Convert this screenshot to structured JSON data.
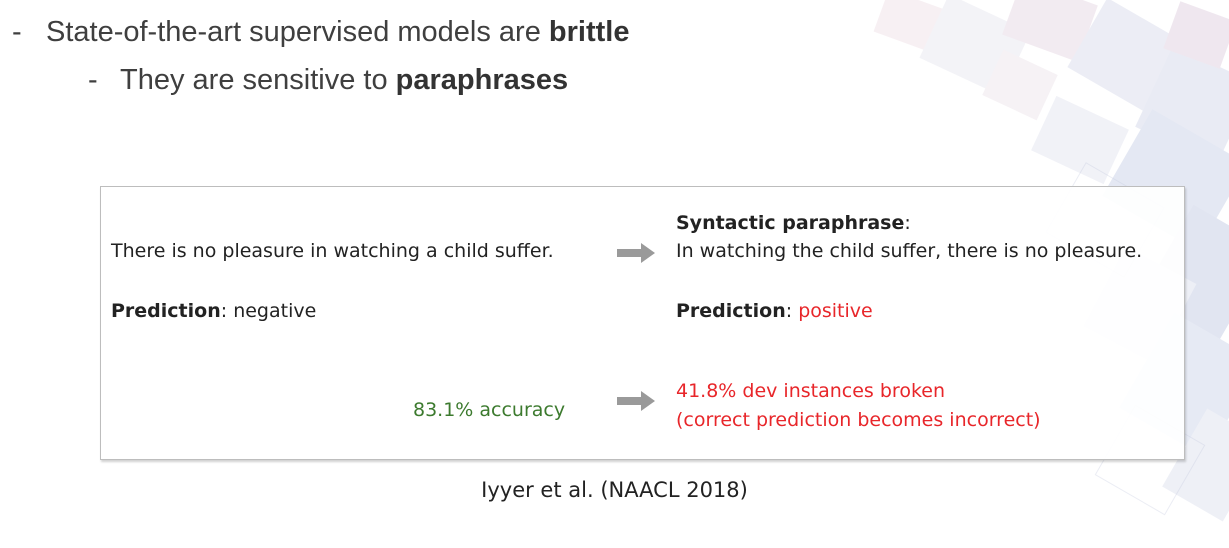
{
  "bullets": {
    "line1": {
      "dash": "-",
      "prefix": "State-of-the-art supervised models are ",
      "bold": "brittle"
    },
    "line2": {
      "dash": "-",
      "prefix": "They are sensitive to ",
      "bold": "paraphrases"
    }
  },
  "example": {
    "original_sentence": "There is no pleasure in watching a child suffer.",
    "paraphrase_heading": "Syntactic paraphrase",
    "paraphrase_colon": ":",
    "paraphrase_sentence": "In watching the child suffer, there is no pleasure.",
    "prediction_label": "Prediction",
    "prediction_colon": ":",
    "original_prediction": "negative",
    "paraphrase_prediction": "positive",
    "accuracy": "83.1% accuracy",
    "broken_line1": "41.8% dev instances broken",
    "broken_line2": "(correct prediction becomes incorrect)",
    "colors": {
      "negative_text": "#222222",
      "positive_red": "#e8262a",
      "accuracy_green": "#3c7a2e",
      "arrow_gray": "#9a9a9a"
    }
  },
  "citation": "Iyyer et al. (NAACL 2018)"
}
